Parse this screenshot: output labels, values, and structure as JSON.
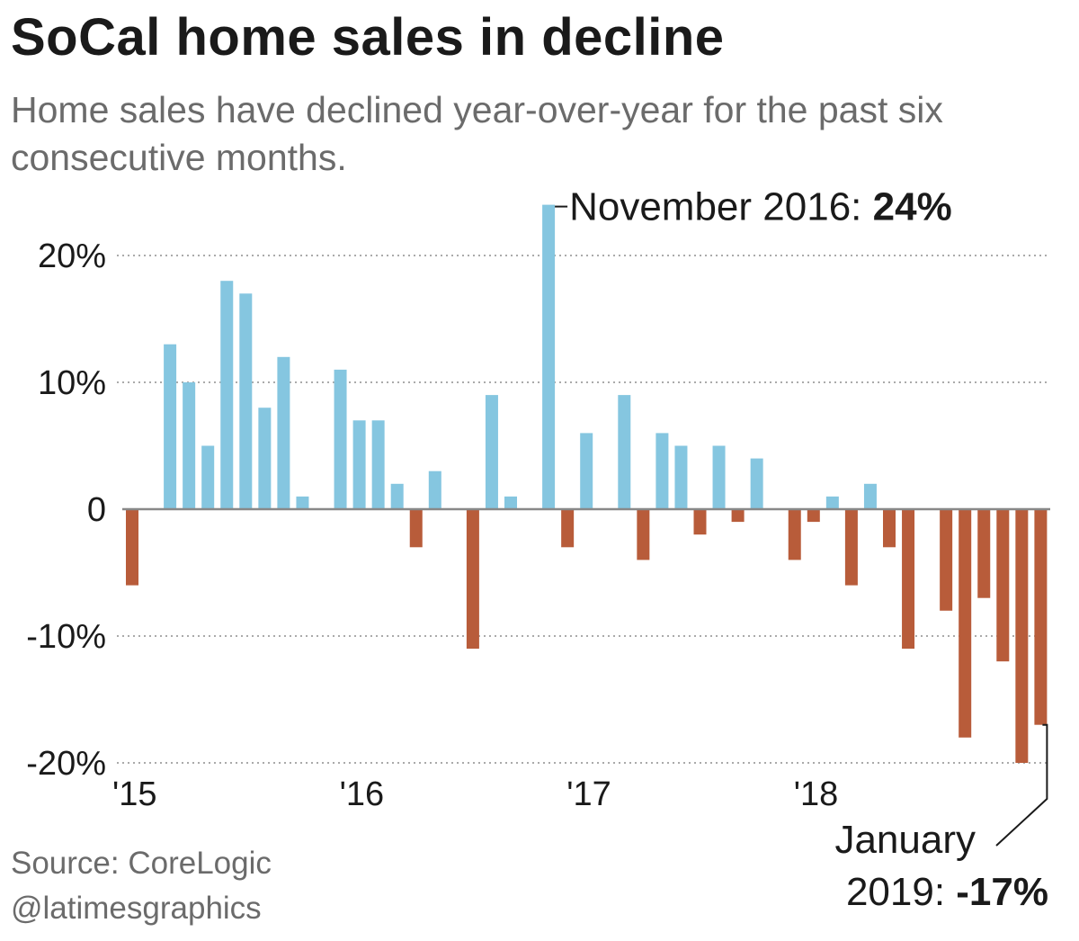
{
  "header": {
    "title": "SoCal home sales in decline",
    "subtitle": "Home sales have declined year-over-year for the past six consecutive months."
  },
  "footer": {
    "source": "Source: CoreLogic",
    "credit": "@latimesgraphics"
  },
  "colors": {
    "positive": "#85c6e0",
    "negative": "#b85c3a",
    "grid": "#aaaaaa",
    "baseline": "#888888",
    "text": "#1a1a1a",
    "muted": "#6b6b6b"
  },
  "chart_data": {
    "type": "bar",
    "title": "SoCal home sales in decline",
    "subtitle": "Home sales have declined year-over-year for the past six consecutive months.",
    "ylim": [
      -20,
      24
    ],
    "y_ticks": [
      {
        "value": 20,
        "label": "20%"
      },
      {
        "value": 10,
        "label": "10%"
      },
      {
        "value": 0,
        "label": "0"
      },
      {
        "value": -10,
        "label": "-10%"
      },
      {
        "value": -20,
        "label": "-20%"
      }
    ],
    "x_ticks": [
      {
        "index": 0,
        "label": "'15"
      },
      {
        "index": 12,
        "label": "'16"
      },
      {
        "index": 24,
        "label": "'17"
      },
      {
        "index": 36,
        "label": "'18"
      }
    ],
    "x": [
      "2015-01",
      "2015-02",
      "2015-03",
      "2015-04",
      "2015-05",
      "2015-06",
      "2015-07",
      "2015-08",
      "2015-09",
      "2015-10",
      "2015-11",
      "2015-12",
      "2016-01",
      "2016-02",
      "2016-03",
      "2016-04",
      "2016-05",
      "2016-06",
      "2016-07",
      "2016-08",
      "2016-09",
      "2016-10",
      "2016-11",
      "2016-12",
      "2017-01",
      "2017-02",
      "2017-03",
      "2017-04",
      "2017-05",
      "2017-06",
      "2017-07",
      "2017-08",
      "2017-09",
      "2017-10",
      "2017-11",
      "2017-12",
      "2018-01",
      "2018-02",
      "2018-03",
      "2018-04",
      "2018-05",
      "2018-06",
      "2018-07",
      "2018-08",
      "2018-09",
      "2018-10",
      "2018-11",
      "2018-12",
      "2019-01"
    ],
    "values": [
      -6,
      0,
      13,
      10,
      5,
      18,
      17,
      8,
      12,
      1,
      0,
      11,
      7,
      7,
      2,
      -3,
      3,
      0,
      -11,
      9,
      1,
      0,
      24,
      -3,
      6,
      0,
      9,
      -4,
      6,
      5,
      -2,
      5,
      -1,
      4,
      0,
      -4,
      -1,
      1,
      -6,
      2,
      -3,
      -11,
      0,
      -8,
      -18,
      -7,
      -12,
      -20,
      -17
    ],
    "annotations": [
      {
        "index": 22,
        "text_prefix": "November 2016: ",
        "text_bold": "24%"
      },
      {
        "index": 48,
        "line1": "January",
        "line2_prefix": "2019: ",
        "line2_bold": "-17%"
      }
    ],
    "grid": true,
    "legend": "none"
  }
}
